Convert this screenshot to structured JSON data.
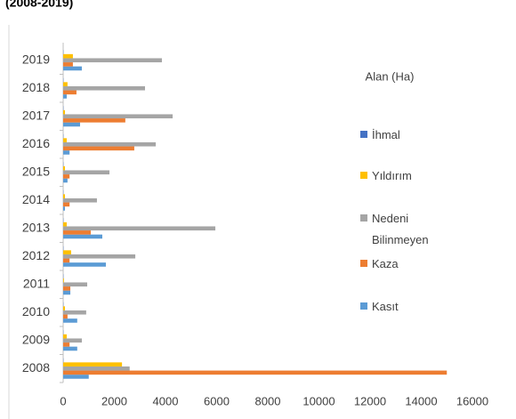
{
  "chart_data": {
    "type": "bar",
    "orientation": "horizontal",
    "title": "(2008-2019)",
    "legend_title": "Alan (Ha)",
    "categories": [
      "2008",
      "2009",
      "2010",
      "2011",
      "2012",
      "2013",
      "2014",
      "2015",
      "2016",
      "2017",
      "2018",
      "2019"
    ],
    "series": [
      {
        "name": "Kasıt",
        "color": "#5b9bd5",
        "values": [
          1000,
          550,
          550,
          280,
          1670,
          1530,
          70,
          170,
          250,
          660,
          140,
          730
        ]
      },
      {
        "name": "Kaza",
        "color": "#ed7d31",
        "values": [
          15000,
          250,
          170,
          280,
          250,
          1080,
          250,
          250,
          2780,
          2430,
          520,
          380
        ]
      },
      {
        "name": "Nedeni Bilinmeyen",
        "color": "#a5a5a5",
        "values": [
          2600,
          730,
          900,
          940,
          2820,
          5950,
          1320,
          1810,
          3620,
          4280,
          3200,
          3860
        ]
      },
      {
        "name": "Yıldırım",
        "color": "#ffc000",
        "values": [
          2300,
          140,
          70,
          30,
          310,
          140,
          70,
          70,
          140,
          70,
          170,
          380
        ]
      },
      {
        "name": "İhmal",
        "color": "#4472c4",
        "values": [
          10,
          10,
          10,
          10,
          10,
          10,
          10,
          10,
          10,
          10,
          10,
          10
        ]
      }
    ],
    "xlim": [
      0,
      16000
    ],
    "xticks": [
      0,
      2000,
      4000,
      6000,
      8000,
      10000,
      12000,
      14000,
      16000
    ],
    "grid": false
  }
}
